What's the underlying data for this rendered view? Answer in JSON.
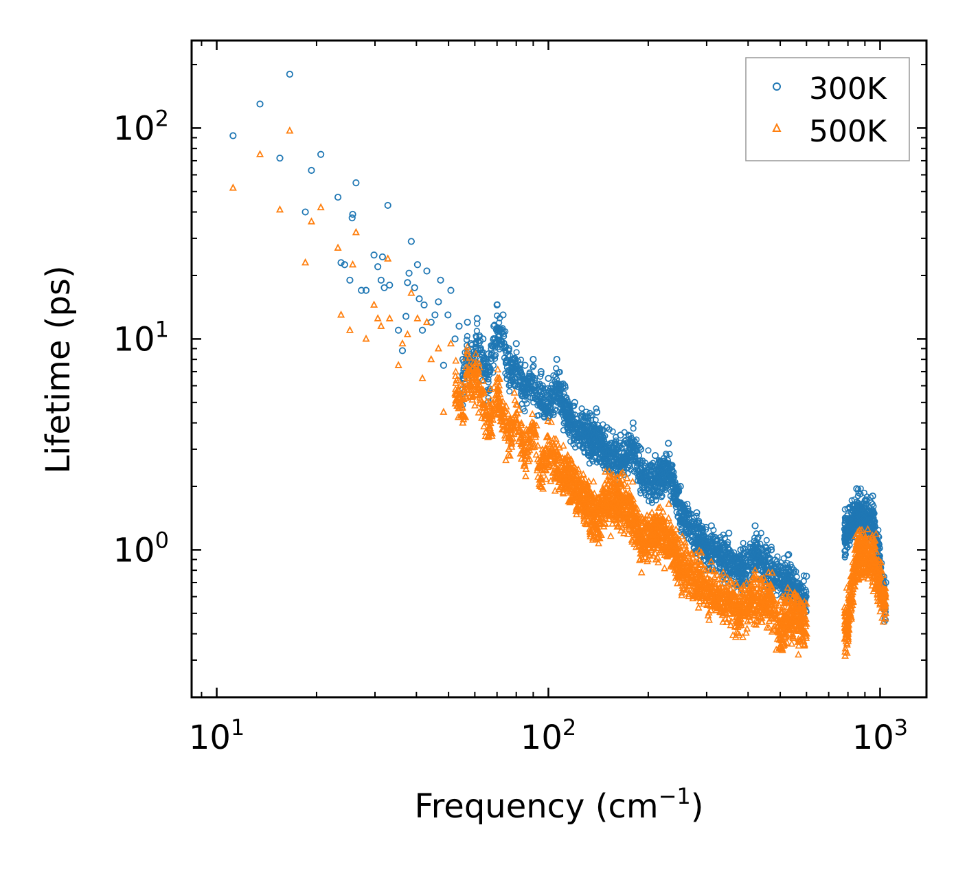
{
  "chart_data": {
    "type": "scatter",
    "xscale": "log",
    "yscale": "log",
    "xlim": [
      8.4,
      1380
    ],
    "ylim": [
      0.2,
      260
    ],
    "xlabel": "Frequency (cm",
    "xlabel_sup": "−1",
    "xlabel_end": ")",
    "ylabel": "Lifetime (ps)",
    "x_ticks": [
      {
        "base": "10",
        "exp": "1",
        "value": 10
      },
      {
        "base": "10",
        "exp": "2",
        "value": 100
      },
      {
        "base": "10",
        "exp": "3",
        "value": 1000
      }
    ],
    "y_ticks": [
      {
        "base": "10",
        "exp": "0",
        "value": 1
      },
      {
        "base": "10",
        "exp": "1",
        "value": 10
      },
      {
        "base": "10",
        "exp": "2",
        "value": 100
      }
    ],
    "legend": {
      "position": "top-right"
    },
    "series": [
      {
        "name": "300K",
        "marker": "circle",
        "color": "#1f77b4",
        "points": [
          [
            11.2,
            92
          ],
          [
            13.5,
            130
          ],
          [
            15.5,
            72
          ],
          [
            16.6,
            180
          ],
          [
            18.5,
            40
          ],
          [
            19.3,
            63
          ],
          [
            20.6,
            75
          ],
          [
            23.2,
            47
          ],
          [
            23.7,
            23
          ],
          [
            24.3,
            22.5
          ],
          [
            25.2,
            19
          ],
          [
            25.6,
            37.5
          ],
          [
            25.7,
            39
          ],
          [
            26.3,
            55
          ],
          [
            27.3,
            17
          ],
          [
            28.2,
            17
          ],
          [
            29.8,
            25
          ],
          [
            30.6,
            22
          ],
          [
            31.3,
            19
          ],
          [
            31.6,
            24.5
          ],
          [
            32.0,
            17.5
          ],
          [
            32.8,
            43
          ],
          [
            33.2,
            18
          ],
          [
            35.3,
            11
          ],
          [
            36.3,
            8.8
          ],
          [
            37.2,
            12.8
          ],
          [
            37.6,
            18.5
          ],
          [
            38.0,
            20.5
          ],
          [
            38.6,
            29
          ],
          [
            39.5,
            17.5
          ],
          [
            40.3,
            22.5
          ],
          [
            40.8,
            15.5
          ],
          [
            41.7,
            11
          ],
          [
            42.2,
            14.5
          ],
          [
            43.0,
            21
          ],
          [
            44.3,
            12
          ],
          [
            45.5,
            13
          ],
          [
            46.6,
            15
          ],
          [
            47.3,
            19
          ],
          [
            48.3,
            7.5
          ],
          [
            49.8,
            13
          ],
          [
            50.8,
            17
          ],
          [
            52.3,
            10
          ],
          [
            53.8,
            11.5
          ],
          [
            55.2,
            8.0
          ],
          [
            57.0,
            12
          ],
          [
            58.5,
            9.5
          ],
          [
            61.0,
            12.5
          ],
          [
            63.5,
            10
          ],
          [
            66.0,
            8.5
          ],
          [
            68.5,
            11.5
          ],
          [
            70.0,
            14.5
          ],
          [
            73.0,
            13
          ],
          [
            76.0,
            9.0
          ],
          [
            80.0,
            9.5
          ],
          [
            85.0,
            7.5
          ],
          [
            90.0,
            8.0
          ],
          [
            95.0,
            7.0
          ],
          [
            100.0,
            6.5
          ],
          [
            106.0,
            8.0
          ],
          [
            112.0,
            6.0
          ],
          [
            120.0,
            5.0
          ],
          [
            130.0,
            4.5
          ],
          [
            140.0,
            4.5
          ],
          [
            150.0,
            3.8
          ],
          [
            165.0,
            3.5
          ],
          [
            180.0,
            4.0
          ],
          [
            190.0,
            3.0
          ],
          [
            210.0,
            2.8
          ],
          [
            230.0,
            3.2
          ],
          [
            250.0,
            2.0
          ],
          [
            280.0,
            1.5
          ],
          [
            310.0,
            1.3
          ],
          [
            350.0,
            1.2
          ],
          [
            380.0,
            1.0
          ],
          [
            420.0,
            1.3
          ],
          [
            470.0,
            1.0
          ],
          [
            530.0,
            0.95
          ],
          [
            600.0,
            0.75
          ],
          [
            850.0,
            1.95
          ],
          [
            950.0,
            1.8
          ],
          [
            1040.0,
            0.7
          ]
        ]
      },
      {
        "name": "500K",
        "marker": "triangle",
        "color": "#ff7f0e",
        "points": [
          [
            11.2,
            52
          ],
          [
            13.5,
            75
          ],
          [
            15.5,
            41
          ],
          [
            16.6,
            97
          ],
          [
            18.5,
            23
          ],
          [
            19.3,
            36
          ],
          [
            20.6,
            42
          ],
          [
            23.2,
            27
          ],
          [
            23.7,
            13
          ],
          [
            25.2,
            11
          ],
          [
            25.7,
            22.5
          ],
          [
            26.3,
            32
          ],
          [
            28.2,
            10
          ],
          [
            29.8,
            14.5
          ],
          [
            30.6,
            12.5
          ],
          [
            31.3,
            11.5
          ],
          [
            32.8,
            24
          ],
          [
            33.2,
            12.5
          ],
          [
            35.3,
            7.5
          ],
          [
            36.3,
            9.5
          ],
          [
            37.6,
            10.5
          ],
          [
            38.6,
            16.5
          ],
          [
            40.3,
            12.5
          ],
          [
            41.7,
            6.5
          ],
          [
            43.0,
            12
          ],
          [
            44.3,
            8
          ],
          [
            46.6,
            9
          ],
          [
            48.3,
            4.5
          ],
          [
            50.8,
            9.5
          ],
          [
            52.3,
            5.5
          ],
          [
            55.2,
            4.0
          ],
          [
            57.0,
            6.5
          ],
          [
            58.5,
            5.5
          ],
          [
            61.0,
            6.0
          ],
          [
            63.5,
            4.5
          ],
          [
            66.0,
            3.5
          ],
          [
            70.0,
            5.0
          ],
          [
            76.0,
            3.0
          ],
          [
            80.0,
            4.0
          ],
          [
            85.0,
            2.5
          ],
          [
            90.0,
            3.5
          ],
          [
            95.0,
            2.0
          ],
          [
            100.0,
            2.8
          ],
          [
            106.0,
            2.2
          ],
          [
            112.0,
            2.0
          ],
          [
            120.0,
            1.8
          ],
          [
            130.0,
            1.5
          ],
          [
            140.0,
            1.2
          ],
          [
            150.0,
            1.6
          ],
          [
            165.0,
            1.5
          ],
          [
            180.0,
            1.3
          ],
          [
            190.0,
            1.0
          ],
          [
            210.0,
            1.1
          ],
          [
            230.0,
            1.0
          ],
          [
            250.0,
            0.75
          ],
          [
            280.0,
            0.65
          ],
          [
            310.0,
            0.55
          ],
          [
            350.0,
            0.5
          ],
          [
            380.0,
            0.45
          ],
          [
            420.0,
            0.55
          ],
          [
            470.0,
            0.5
          ],
          [
            500.0,
            0.35
          ],
          [
            530.0,
            0.45
          ],
          [
            600.0,
            0.4
          ],
          [
            800.0,
            0.4
          ],
          [
            850.0,
            0.85
          ],
          [
            950.0,
            0.8
          ],
          [
            1040.0,
            0.5
          ]
        ]
      }
    ]
  }
}
